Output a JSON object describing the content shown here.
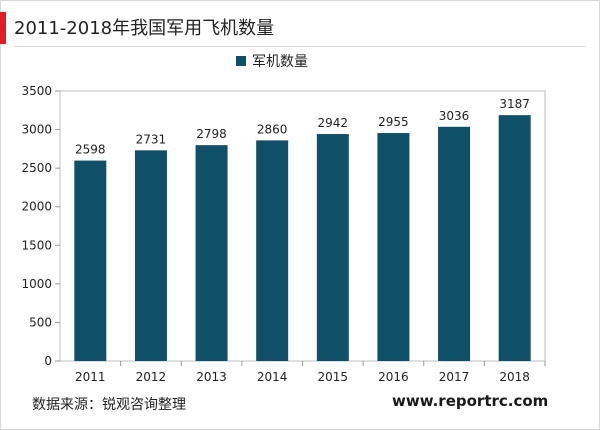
{
  "title": "2011-2018年我国军用飞机数量",
  "source": "数据来源：锐观咨询整理",
  "website": "www.reportrc.com",
  "colors": {
    "bar": "#0f5068",
    "accent": "#e31b23"
  },
  "chart_data": {
    "type": "bar",
    "categories": [
      "2011",
      "2012",
      "2013",
      "2014",
      "2015",
      "2016",
      "2017",
      "2018"
    ],
    "series": [
      {
        "name": "军机数量",
        "values": [
          2598,
          2731,
          2798,
          2860,
          2942,
          2955,
          3036,
          3187
        ]
      }
    ],
    "ylim": [
      0,
      3500
    ],
    "yticks": [
      0,
      500,
      1000,
      1500,
      2000,
      2500,
      3000,
      3500
    ],
    "grid": false,
    "legend": "top"
  }
}
